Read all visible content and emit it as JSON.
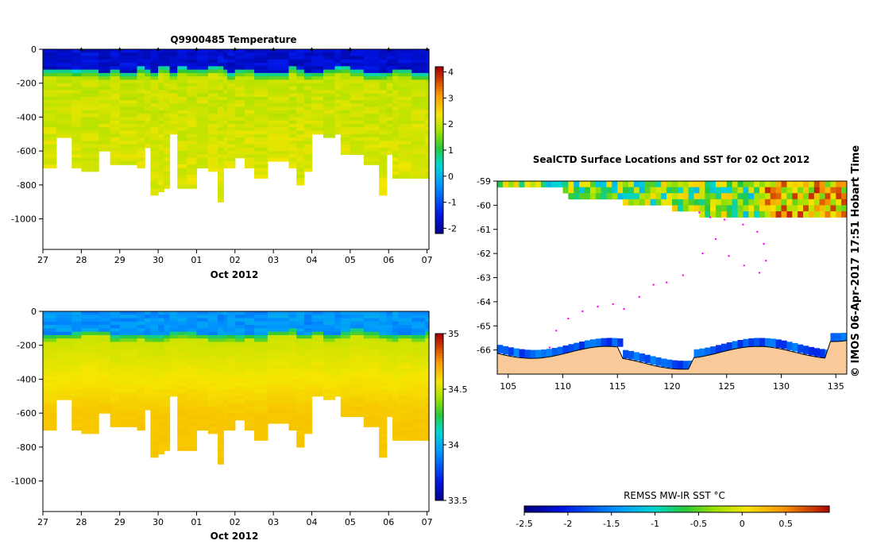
{
  "chart_data": [
    {
      "type": "heatmap",
      "title": "Q9900485  Temperature",
      "xlabel": "Oct 2012",
      "x_ticks": [
        "27",
        "28",
        "29",
        "30",
        "01",
        "02",
        "03",
        "04",
        "05",
        "06",
        "07"
      ],
      "x_range_days": [
        27,
        37.05
      ],
      "y_ticks": [
        "0",
        "-200",
        "-400",
        "-600",
        "-800",
        "-1000"
      ],
      "ylim": [
        -1180,
        0
      ],
      "colorbar": {
        "min": -2.2,
        "max": 4.2,
        "ticks": [
          "4",
          "3",
          "2",
          "1",
          "0",
          "-1",
          "-2"
        ]
      },
      "profile_markers_day": [
        28,
        29,
        30,
        31,
        32,
        33,
        34,
        35,
        36,
        37
      ],
      "profiles": {
        "times_day": [
          27.0,
          27.35,
          27.75,
          28.0,
          28.45,
          28.75,
          29.0,
          29.45,
          29.65,
          29.8,
          30.0,
          30.15,
          30.3,
          30.5,
          30.75,
          31.0,
          31.3,
          31.55,
          31.7,
          31.8,
          32.0,
          32.25,
          32.5,
          32.85,
          33.4,
          33.6,
          33.8,
          34.0,
          34.3,
          34.6,
          34.75,
          35.0,
          35.35,
          35.75,
          35.95,
          36.1,
          36.25,
          36.6,
          36.95
        ],
        "depths_m": [
          700,
          520,
          690,
          720,
          590,
          670,
          680,
          690,
          580,
          850,
          830,
          820,
          500,
          810,
          810,
          700,
          720,
          890,
          700,
          700,
          640,
          700,
          760,
          650,
          700,
          790,
          720,
          500,
          510,
          500,
          620,
          620,
          680,
          860,
          620,
          750,
          750,
          750,
          750
        ]
      },
      "surface_temp_c": -1.6,
      "deep_temp_c": 2.0
    },
    {
      "type": "heatmap",
      "title": "",
      "xlabel": "Oct 2012",
      "x_ticks": [
        "27",
        "28",
        "29",
        "30",
        "01",
        "02",
        "03",
        "04",
        "05",
        "06",
        "07"
      ],
      "y_ticks": [
        "0",
        "-200",
        "-400",
        "-600",
        "-800",
        "-1000"
      ],
      "ylim": [
        -1180,
        0
      ],
      "colorbar": {
        "min": 33.5,
        "max": 35.0,
        "ticks": [
          "35",
          "34.5",
          "34",
          "33.5"
        ]
      },
      "surface_sal_psu": 33.95,
      "deep_sal_psu": 34.65
    },
    {
      "type": "heatmap",
      "title": "SealCTD Surface Locations and SST for 02 Oct 2012",
      "x_ticks": [
        "105",
        "110",
        "115",
        "120",
        "125",
        "130",
        "135"
      ],
      "xlim": [
        104,
        136
      ],
      "y_ticks": [
        "-59",
        "-60",
        "-61",
        "-62",
        "-63",
        "-64",
        "-65",
        "-66"
      ],
      "ylim": [
        -67,
        -59
      ],
      "colorbar": {
        "label": "REMSS MW-IR SST °C",
        "min": -2.5,
        "max": 1.0,
        "ticks": [
          "-2.5",
          "-2",
          "-1.5",
          "-1",
          "-0.5",
          "0",
          "0.5"
        ]
      },
      "track_lon_lat": [
        [
          108.8,
          -65.9
        ],
        [
          109.4,
          -65.2
        ],
        [
          110.5,
          -64.7
        ],
        [
          111.8,
          -64.4
        ],
        [
          113.2,
          -64.2
        ],
        [
          114.6,
          -64.1
        ],
        [
          115.6,
          -64.3
        ],
        [
          117.0,
          -63.8
        ],
        [
          118.3,
          -63.3
        ],
        [
          119.5,
          -63.2
        ],
        [
          121.0,
          -62.9
        ],
        [
          122.8,
          -62.0
        ],
        [
          124.0,
          -61.4
        ],
        [
          125.2,
          -62.1
        ],
        [
          126.6,
          -62.5
        ],
        [
          128.0,
          -62.8
        ],
        [
          128.6,
          -62.3
        ],
        [
          128.4,
          -61.6
        ],
        [
          127.8,
          -61.1
        ],
        [
          126.5,
          -60.8
        ],
        [
          124.8,
          -60.6
        ],
        [
          123.5,
          -60.5
        ],
        [
          122.5,
          -60.3
        ]
      ]
    }
  ],
  "ui": {
    "credit": "© IMOS 06-Apr-2017 17:51 Hobart Time",
    "colors": {
      "land": "#f9c99a",
      "track": "#ff00ff"
    }
  }
}
